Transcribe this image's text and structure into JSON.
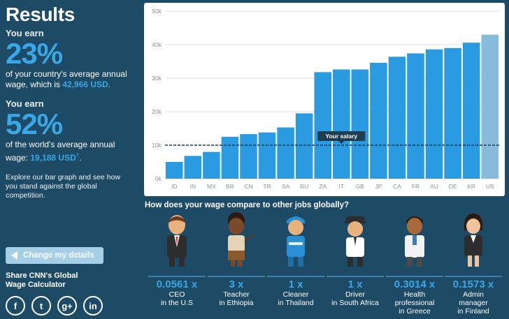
{
  "left": {
    "title": "Results",
    "earn1_label": "You earn",
    "earn1_pct": "23%",
    "earn1_desc_a": "of your country's average annual wage, which is ",
    "earn1_value": "42,966 USD",
    "earn1_desc_b": ".",
    "earn2_label": "You earn",
    "earn2_pct": "52%",
    "earn2_desc_a": "of the world's average annual wage: ",
    "earn2_value": "19,188 USD",
    "earn2_dagger": "†",
    "earn2_desc_b": ".",
    "explore": "Explore our bar graph and see how you stand against the global competition.",
    "change_button": "Change my details",
    "share": "Share CNN's Global Wage Calculator",
    "social_icons": [
      "facebook-icon",
      "twitter-icon",
      "googleplus-icon",
      "linkedin-icon"
    ],
    "social_glyphs": [
      "f",
      "t",
      "g+",
      "in"
    ]
  },
  "chart_data": {
    "type": "bar",
    "categories": [
      "ID",
      "IN",
      "MX",
      "BR",
      "CN",
      "TR",
      "SA",
      "RU",
      "ZA",
      "IT",
      "GB",
      "JP",
      "CA",
      "FR",
      "AU",
      "DE",
      "KR",
      "US"
    ],
    "values": [
      5000,
      6800,
      8000,
      12500,
      13300,
      13800,
      15300,
      19500,
      31800,
      32600,
      32600,
      34600,
      36400,
      37400,
      38600,
      39000,
      40600,
      43000
    ],
    "highlight_category": "US",
    "ylim": [
      0,
      50000
    ],
    "y_ticks": [
      0,
      10000,
      20000,
      30000,
      40000,
      50000
    ],
    "y_tick_labels": [
      "0k",
      "10k",
      "20k",
      "30k",
      "40k",
      "50k"
    ],
    "reference_line": {
      "value": 10000,
      "label": "Your salary"
    },
    "grid": true,
    "colors": {
      "bar": "#2a9be0",
      "highlight": "#86bcd9",
      "grid": "#d9dde0",
      "line": "#1d3d52"
    }
  },
  "compare": {
    "question": "How does your wage compare to other jobs globally?",
    "jobs": [
      {
        "multiplier": "0.0561 x",
        "line1": "CEO",
        "line2": "in the U.S",
        "line3": ""
      },
      {
        "multiplier": "3 x",
        "line1": "Teacher",
        "line2": "in Ethiopia",
        "line3": ""
      },
      {
        "multiplier": "1 x",
        "line1": "Cleaner",
        "line2": "in Thailand",
        "line3": ""
      },
      {
        "multiplier": "1 x",
        "line1": "Driver",
        "line2": "in South Africa",
        "line3": ""
      },
      {
        "multiplier": "0.3014 x",
        "line1": "Health",
        "line2": "professional",
        "line3": "in Greece"
      },
      {
        "multiplier": "0.1573 x",
        "line1": "Admin",
        "line2": "manager",
        "line3": "in Finland"
      }
    ]
  }
}
